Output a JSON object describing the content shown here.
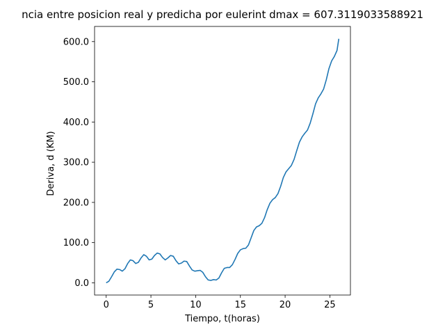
{
  "chart_data": {
    "type": "line",
    "title": "ncia entre posicion real y predicha por eulerint dmax = 607.3119033588921",
    "xlabel": "Tiempo, t(horas)",
    "ylabel": "Deriva, d (KM)",
    "xlim": [
      -1.3,
      27.3
    ],
    "ylim": [
      -30.4,
      637.7
    ],
    "x_ticks": [
      0,
      5,
      10,
      15,
      20,
      25
    ],
    "y_ticks": [
      0,
      100,
      200,
      300,
      400,
      500,
      600
    ],
    "x_tick_labels": [
      "0",
      "5",
      "10",
      "15",
      "20",
      "25"
    ],
    "y_tick_labels": [
      "0.0",
      "100.0",
      "200.0",
      "300.0",
      "400.0",
      "500.0",
      "600.0"
    ],
    "grid": false,
    "line_color": "#1f77b4",
    "series": [
      {
        "x": [
          0,
          0.3,
          0.6,
          0.9,
          1.2,
          1.5,
          1.8,
          2.1,
          2.4,
          2.7,
          3.0,
          3.3,
          3.6,
          3.9,
          4.2,
          4.5,
          4.8,
          5.1,
          5.4,
          5.7,
          6.0,
          6.3,
          6.6,
          6.9,
          7.2,
          7.5,
          7.8,
          8.1,
          8.4,
          8.7,
          9.0,
          9.3,
          9.6,
          9.9,
          10.2,
          10.5,
          10.8,
          11.1,
          11.4,
          11.7,
          12.0,
          12.3,
          12.6,
          12.9,
          13.2,
          13.5,
          13.8,
          14.1,
          14.4,
          14.7,
          15.0,
          15.3,
          15.6,
          15.9,
          16.2,
          16.5,
          16.8,
          17.1,
          17.4,
          17.7,
          18.0,
          18.3,
          18.6,
          18.9,
          19.2,
          19.5,
          19.8,
          20.1,
          20.4,
          20.7,
          21.0,
          21.3,
          21.6,
          21.9,
          22.2,
          22.5,
          22.8,
          23.1,
          23.4,
          23.7,
          24.0,
          24.3,
          24.6,
          24.9,
          25.2,
          25.5,
          25.8,
          26.0
        ],
        "y": [
          0,
          4,
          15,
          27,
          34,
          33,
          29,
          35,
          48,
          57,
          55,
          48,
          51,
          62,
          70,
          66,
          57,
          59,
          68,
          74,
          72,
          63,
          57,
          62,
          68,
          66,
          55,
          47,
          49,
          54,
          53,
          42,
          32,
          29,
          30,
          31,
          26,
          15,
          7,
          6,
          8,
          7,
          12,
          25,
          36,
          38,
          38,
          45,
          58,
          73,
          82,
          85,
          86,
          94,
          112,
          130,
          139,
          142,
          148,
          162,
          182,
          198,
          207,
          212,
          222,
          240,
          262,
          276,
          284,
          292,
          307,
          329,
          350,
          363,
          372,
          380,
          397,
          420,
          445,
          460,
          470,
          482,
          505,
          533,
          552,
          563,
          578,
          607
        ]
      }
    ]
  }
}
